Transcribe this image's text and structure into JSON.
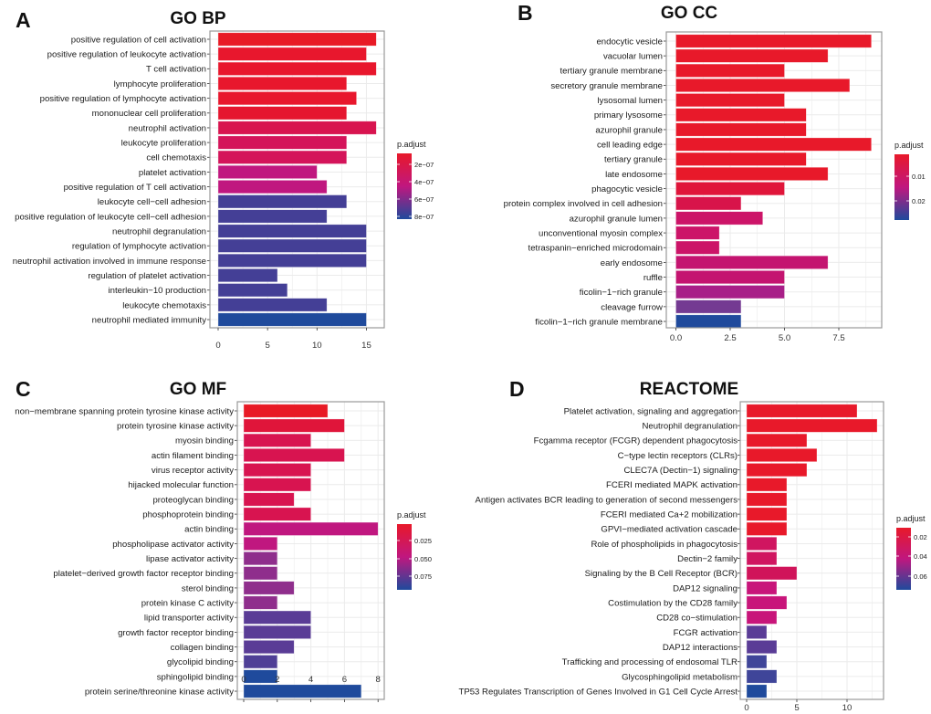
{
  "chart_data": [
    {
      "type": "bar",
      "orientation": "horizontal",
      "panel_letter": "A",
      "title": "GO BP",
      "categories": [
        "positive regulation of cell activation",
        "positive regulation of leukocyte activation",
        "T cell activation",
        "lymphocyte proliferation",
        "positive regulation of lymphocyte activation",
        "mononuclear cell proliferation",
        "neutrophil activation",
        "leukocyte proliferation",
        "cell chemotaxis",
        "platelet activation",
        "positive regulation of T cell activation",
        "leukocyte cell−cell adhesion",
        "positive regulation of leukocyte cell−cell adhesion",
        "neutrophil degranulation",
        "regulation of lymphocyte activation",
        "neutrophil activation involved in immune response",
        "regulation of platelet activation",
        "interleukin−10 production",
        "leukocyte chemotaxis",
        "neutrophil mediated immunity"
      ],
      "values": [
        16,
        15,
        16,
        13,
        14,
        13,
        16,
        13,
        13,
        10,
        11,
        13,
        11,
        15,
        15,
        15,
        6,
        7,
        11,
        15
      ],
      "colors": [
        "#e81a25",
        "#e8172d",
        "#e8172d",
        "#e8172d",
        "#e8172d",
        "#e5162f",
        "#d8144f",
        "#d4145a",
        "#d4145a",
        "#c0177f",
        "#c0177f",
        "#443f96",
        "#443f96",
        "#443f96",
        "#443f96",
        "#443f96",
        "#443f96",
        "#443f96",
        "#443f96",
        "#1f4a9c"
      ],
      "xticks": [
        "0",
        "5",
        "10",
        "15"
      ],
      "xtick_values": [
        0,
        5,
        10,
        15
      ],
      "xlim": [
        0,
        16.8
      ],
      "grid": true,
      "legend": {
        "title": "p.adjust",
        "labels": [
          "2e−07",
          "4e−07",
          "6e−07",
          "8e−07"
        ],
        "placement": "right"
      }
    },
    {
      "type": "bar",
      "orientation": "horizontal",
      "panel_letter": "B",
      "title": "GO CC",
      "categories": [
        "endocytic vesicle",
        "vacuolar lumen",
        "tertiary granule membrane",
        "secretory granule membrane",
        "lysosomal lumen",
        "primary lysosome",
        "azurophil granule",
        "cell leading edge",
        "tertiary granule",
        "late endosome",
        "phagocytic vesicle",
        "protein complex involved in cell adhesion",
        "azurophil granule lumen",
        "unconventional myosin complex",
        "tetraspanin−enriched microdomain",
        "early endosome",
        "ruffle",
        "ficolin−1−rich granule",
        "cleavage furrow",
        "ficolin−1−rich granule membrane"
      ],
      "values": [
        9,
        7,
        5,
        8,
        5,
        6,
        6,
        9,
        6,
        7,
        5,
        3,
        4,
        2,
        2,
        7,
        5,
        5,
        3,
        3
      ],
      "colors": [
        "#e8192a",
        "#e8192a",
        "#e8192a",
        "#e8192a",
        "#e8192a",
        "#e8192a",
        "#e8192a",
        "#e8192a",
        "#e8192a",
        "#e8192a",
        "#e0153a",
        "#d8144a",
        "#cc1468",
        "#cc1468",
        "#cc1468",
        "#c41470",
        "#c41470",
        "#a81f88",
        "#743a92",
        "#1f4a9c"
      ],
      "xticks": [
        "0.0",
        "2.5",
        "5.0",
        "7.5"
      ],
      "xtick_values": [
        0,
        2.5,
        5,
        7.5
      ],
      "xlim": [
        0,
        9.45
      ],
      "grid": true,
      "legend": {
        "title": "p.adjust",
        "labels": [
          "0.01",
          "0.02"
        ],
        "placement": "right"
      }
    },
    {
      "type": "bar",
      "orientation": "horizontal",
      "panel_letter": "C",
      "title": "GO MF",
      "categories": [
        "non−membrane spanning protein tyrosine kinase activity",
        "protein tyrosine kinase activity",
        "myosin binding",
        "actin filament binding",
        "virus receptor activity",
        "hijacked molecular function",
        "proteoglycan binding",
        "phosphoprotein binding",
        "actin binding",
        "phospholipase activator activity",
        "lipase activator activity",
        "platelet−derived growth factor receptor binding",
        "sterol binding",
        "protein kinase C activity",
        "lipid transporter activity",
        "growth factor receptor binding",
        "collagen binding",
        "glycolipid binding",
        "sphingolipid binding",
        "protein serine/threonine kinase activity"
      ],
      "values": [
        5,
        6,
        4,
        6,
        4,
        4,
        3,
        4,
        8,
        2,
        2,
        2,
        3,
        2,
        4,
        4,
        3,
        2,
        2,
        7
      ],
      "colors": [
        "#e81a25",
        "#e0153a",
        "#d81450",
        "#d81450",
        "#d81450",
        "#d81450",
        "#d81450",
        "#d81450",
        "#c0177f",
        "#c0177f",
        "#8f2e8c",
        "#8f2e8c",
        "#8f2e8c",
        "#8f2e8c",
        "#5a3c96",
        "#5a3c96",
        "#5a3c96",
        "#4f3f96",
        "#1f4a9c",
        "#1f4a9c"
      ],
      "xticks": [
        "0",
        "2",
        "4",
        "6",
        "8"
      ],
      "xtick_values": [
        0,
        2,
        4,
        6,
        8
      ],
      "xlim": [
        0,
        8.4
      ],
      "grid": true,
      "legend": {
        "title": "p.adjust",
        "labels": [
          "0.025",
          "0.050",
          "0.075"
        ],
        "placement": "right"
      }
    },
    {
      "type": "bar",
      "orientation": "horizontal",
      "panel_letter": "D",
      "title": "REACTOME",
      "categories": [
        "Platelet activation, signaling and aggregation",
        "Neutrophil degranulation",
        "Fcgamma receptor (FCGR) dependent phagocytosis",
        "C−type lectin receptors (CLRs)",
        "CLEC7A (Dectin−1) signaling",
        "FCERI mediated MAPK activation",
        "Antigen activates BCR leading to generation of second messengers",
        "FCERI mediated Ca+2 mobilization",
        "GPVI−mediated activation cascade",
        "Role of phospholipids in phagocytosis",
        "Dectin−2 family",
        "Signaling by the B Cell Receptor (BCR)",
        "DAP12 signaling",
        "Costimulation by the CD28 family",
        "CD28 co−stimulation",
        "FCGR activation",
        "DAP12 interactions",
        "Trafficking and processing of endosomal TLR",
        "Glycosphingolipid metabolism",
        "TP53 Regulates Transcription of Genes Involved in G1 Cell Cycle Arrest"
      ],
      "values": [
        11,
        13,
        6,
        7,
        6,
        4,
        4,
        4,
        4,
        3,
        3,
        5,
        3,
        4,
        3,
        2,
        3,
        2,
        3,
        2
      ],
      "colors": [
        "#e8192a",
        "#e8192a",
        "#e8192a",
        "#e8192a",
        "#e8192a",
        "#e8192a",
        "#e8192a",
        "#e8192a",
        "#e8192a",
        "#d01560",
        "#d01560",
        "#d0145a",
        "#c8157a",
        "#c8157a",
        "#c8157a",
        "#5a3c96",
        "#5a3c96",
        "#3f4599",
        "#3f4599",
        "#1f4a9c"
      ],
      "xticks": [
        "0",
        "5",
        "10"
      ],
      "xtick_values": [
        0,
        5,
        10
      ],
      "xlim": [
        0,
        13.6
      ],
      "grid": true,
      "legend": {
        "title": "p.adjust",
        "labels": [
          "0.02",
          "0.04",
          "0.06"
        ],
        "placement": "right"
      }
    }
  ]
}
